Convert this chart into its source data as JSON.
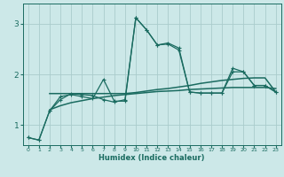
{
  "xlabel": "Humidex (Indice chaleur)",
  "ylabel": "",
  "bg_color": "#cce8e8",
  "grid_color": "#aacccc",
  "line_color": "#1a6b60",
  "xlim": [
    -0.5,
    23.5
  ],
  "ylim": [
    0.6,
    3.4
  ],
  "yticks": [
    1,
    2,
    3
  ],
  "xticks": [
    0,
    1,
    2,
    3,
    4,
    5,
    6,
    7,
    8,
    9,
    10,
    11,
    12,
    13,
    14,
    15,
    16,
    17,
    18,
    19,
    20,
    21,
    22,
    23
  ],
  "series1_x": [
    0,
    1,
    2,
    3,
    4,
    5,
    6,
    7,
    8,
    9,
    10,
    11,
    12,
    13,
    14,
    15,
    16,
    17,
    18,
    19,
    20,
    21,
    22,
    23
  ],
  "series1_y": [
    0.75,
    0.7,
    1.28,
    1.5,
    1.62,
    1.6,
    1.58,
    1.5,
    1.45,
    1.5,
    3.12,
    2.88,
    2.58,
    2.62,
    2.52,
    1.65,
    1.63,
    1.63,
    1.63,
    2.12,
    2.05,
    1.78,
    1.78,
    1.65
  ],
  "series2_x": [
    0,
    1,
    2,
    3,
    4,
    5,
    6,
    7,
    8,
    9,
    10,
    11,
    12,
    13,
    14,
    15,
    16,
    17,
    18,
    19,
    20,
    21,
    22,
    23
  ],
  "series2_y": [
    0.75,
    0.7,
    1.28,
    1.56,
    1.6,
    1.56,
    1.52,
    1.9,
    1.47,
    1.47,
    3.12,
    2.88,
    2.58,
    2.6,
    2.48,
    1.65,
    1.63,
    1.63,
    1.63,
    2.05,
    2.05,
    1.78,
    1.78,
    1.65
  ],
  "series3_x": [
    2,
    3,
    4,
    5,
    6,
    7,
    8,
    9,
    10,
    11,
    12,
    13,
    14,
    15,
    16,
    17,
    18,
    19,
    20,
    21,
    22,
    23
  ],
  "series3_y": [
    1.62,
    1.62,
    1.62,
    1.62,
    1.62,
    1.62,
    1.62,
    1.62,
    1.64,
    1.67,
    1.7,
    1.72,
    1.75,
    1.78,
    1.82,
    1.85,
    1.88,
    1.9,
    1.92,
    1.93,
    1.93,
    1.65
  ],
  "series4_x": [
    2,
    3,
    4,
    5,
    6,
    7,
    8,
    9,
    10,
    11,
    12,
    13,
    14,
    15,
    16,
    17,
    18,
    19,
    20,
    21,
    22,
    23
  ],
  "series4_y": [
    1.3,
    1.38,
    1.44,
    1.48,
    1.52,
    1.55,
    1.58,
    1.6,
    1.62,
    1.64,
    1.66,
    1.67,
    1.68,
    1.7,
    1.71,
    1.72,
    1.73,
    1.74,
    1.74,
    1.74,
    1.74,
    1.72
  ]
}
